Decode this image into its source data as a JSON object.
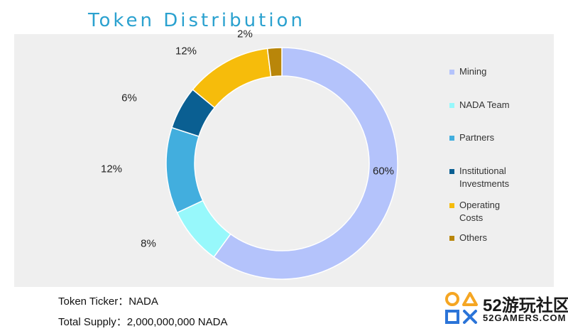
{
  "chart_data": {
    "type": "pie",
    "variant": "donut",
    "title": "Token Distribution",
    "categories": [
      "Mining",
      "NADA Team",
      "Partners",
      "Institutional Investments",
      "Operating Costs",
      "Others"
    ],
    "values": [
      60,
      8,
      12,
      6,
      12,
      2
    ],
    "value_labels": [
      "60%",
      "8%",
      "12%",
      "6%",
      "12%",
      "2%"
    ],
    "colors": [
      "#b4c3fb",
      "#97f8fb",
      "#42aede",
      "#0a5f92",
      "#f6bc0b",
      "#b9860a"
    ],
    "legend_position": "right"
  },
  "legend_lines": [
    [
      "Mining"
    ],
    [
      "NADA Team"
    ],
    [
      "Partners"
    ],
    [
      "Institutional",
      "Investments"
    ],
    [
      "Operating",
      "Costs"
    ],
    [
      "Others"
    ]
  ],
  "info": {
    "ticker": "Token Ticker：NADA",
    "supply": "Total Supply：2,000,000,000 NADA"
  },
  "logo": {
    "main": "52游玩社区",
    "sub": "52GAMERS.COM",
    "colors": [
      "#f5a623",
      "#2b74d8"
    ]
  }
}
